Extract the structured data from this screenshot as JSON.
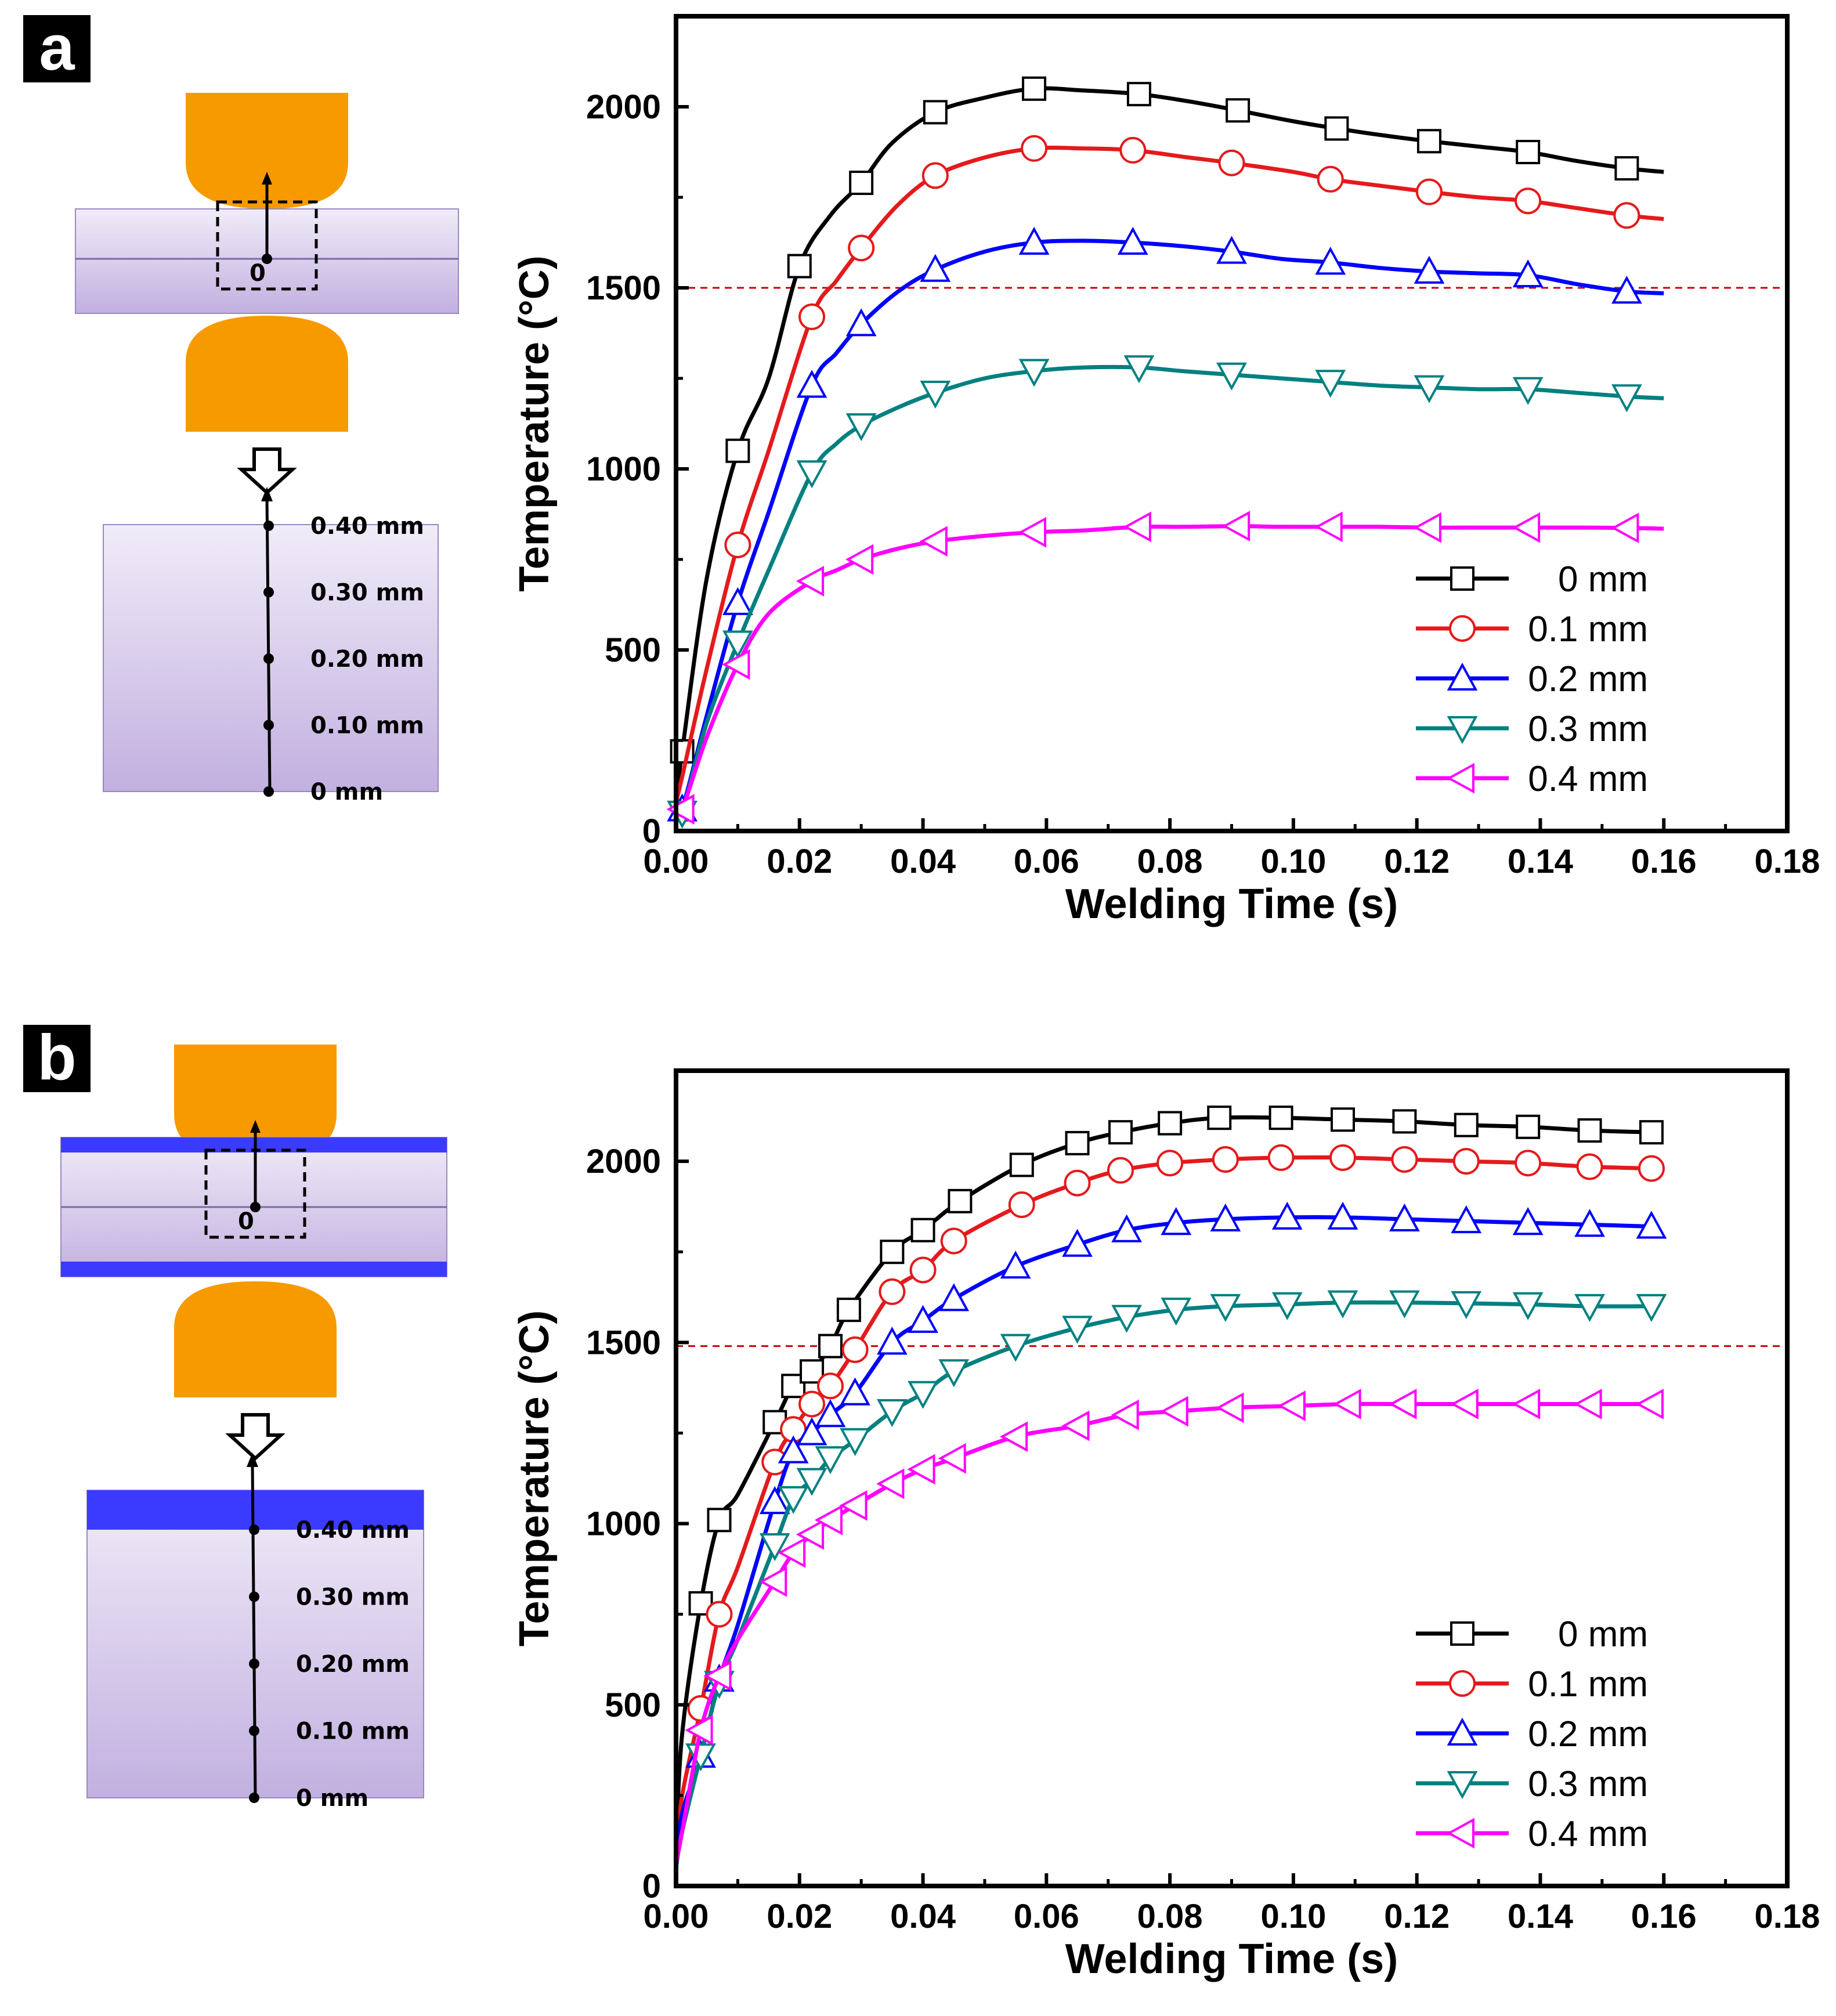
{
  "panels": [
    {
      "letter": "a",
      "coating": false,
      "diagram": {
        "origin_label": "0",
        "depth_labels": [
          "0.40 mm",
          "0.30 mm",
          "0.20 mm",
          "0.10 mm",
          "0 mm"
        ]
      },
      "chart_data": {
        "type": "line",
        "title": "",
        "xlabel": "Welding Time (s)",
        "ylabel": "Temperature (°C)",
        "xlim": [
          0,
          0.18
        ],
        "ylim": [
          0,
          2250
        ],
        "xticks": [
          "0.00",
          "0.02",
          "0.04",
          "0.06",
          "0.08",
          "0.10",
          "0.12",
          "0.14",
          "0.16",
          "0.18"
        ],
        "yticks": [
          "0",
          "500",
          "1000",
          "1500",
          "2000"
        ],
        "reference_line": 1500,
        "legend_position": "bottom-right",
        "series": [
          {
            "name": "0 mm",
            "color": "#000000",
            "marker": "square",
            "x": [
              0,
              0.001,
              0.005,
              0.01,
              0.015,
              0.02,
              0.025,
              0.03,
              0.035,
              0.042,
              0.05,
              0.058,
              0.066,
              0.075,
              0.083,
              0.091,
              0.1,
              0.107,
              0.115,
              0.122,
              0.13,
              0.138,
              0.146,
              0.154,
              0.16
            ],
            "y": [
              100,
              220,
              700,
              1050,
              1250,
              1560,
              1700,
              1790,
              1900,
              1985,
              2025,
              2050,
              2045,
              2035,
              2015,
              1990,
              1960,
              1940,
              1920,
              1905,
              1890,
              1875,
              1850,
              1830,
              1820
            ],
            "marker_idx": [
              1,
              3,
              5,
              7,
              9,
              11,
              13,
              15,
              17,
              19,
              21,
              23
            ]
          },
          {
            "name": "0.1 mm",
            "color": "#e41a1c",
            "marker": "circle",
            "x": [
              0,
              0.001,
              0.005,
              0.01,
              0.015,
              0.022,
              0.026,
              0.03,
              0.036,
              0.042,
              0.05,
              0.058,
              0.066,
              0.074,
              0.083,
              0.09,
              0.1,
              0.106,
              0.115,
              0.122,
              0.13,
              0.138,
              0.146,
              0.154,
              0.16
            ],
            "y": [
              80,
              150,
              450,
              790,
              1050,
              1420,
              1520,
              1610,
              1730,
              1810,
              1860,
              1885,
              1885,
              1880,
              1860,
              1845,
              1820,
              1800,
              1780,
              1765,
              1750,
              1740,
              1720,
              1700,
              1690
            ],
            "marker_idx": [
              3,
              5,
              7,
              9,
              11,
              13,
              15,
              17,
              19,
              21,
              23
            ]
          },
          {
            "name": "0.2 mm",
            "color": "#0000ff",
            "marker": "triangle-up",
            "x": [
              0,
              0.001,
              0.005,
              0.01,
              0.015,
              0.022,
              0.026,
              0.03,
              0.036,
              0.042,
              0.05,
              0.058,
              0.066,
              0.074,
              0.082,
              0.09,
              0.098,
              0.106,
              0.114,
              0.122,
              0.13,
              0.138,
              0.146,
              0.154,
              0.16
            ],
            "y": [
              60,
              60,
              320,
              630,
              880,
              1230,
              1320,
              1400,
              1490,
              1550,
              1600,
              1625,
              1630,
              1625,
              1615,
              1600,
              1580,
              1570,
              1555,
              1545,
              1540,
              1535,
              1510,
              1490,
              1485
            ],
            "marker_idx": [
              1,
              3,
              5,
              7,
              9,
              11,
              13,
              15,
              17,
              19,
              21,
              23
            ]
          },
          {
            "name": "0.3 mm",
            "color": "#008080",
            "marker": "triangle-down",
            "x": [
              0,
              0.001,
              0.005,
              0.01,
              0.015,
              0.022,
              0.026,
              0.03,
              0.036,
              0.042,
              0.05,
              0.058,
              0.066,
              0.075,
              0.082,
              0.09,
              0.098,
              0.106,
              0.114,
              0.122,
              0.13,
              0.138,
              0.146,
              0.154,
              0.16
            ],
            "y": [
              50,
              50,
              300,
              520,
              720,
              990,
              1070,
              1120,
              1170,
              1210,
              1250,
              1270,
              1280,
              1280,
              1270,
              1260,
              1250,
              1240,
              1230,
              1225,
              1220,
              1220,
              1210,
              1200,
              1195
            ],
            "marker_idx": [
              1,
              3,
              5,
              7,
              9,
              11,
              13,
              15,
              17,
              19,
              21,
              23
            ]
          },
          {
            "name": "0.4 mm",
            "color": "#ff00ff",
            "marker": "triangle-left",
            "x": [
              0,
              0.001,
              0.005,
              0.01,
              0.015,
              0.022,
              0.026,
              0.03,
              0.036,
              0.042,
              0.05,
              0.058,
              0.066,
              0.075,
              0.082,
              0.091,
              0.098,
              0.106,
              0.114,
              0.122,
              0.13,
              0.138,
              0.146,
              0.154,
              0.16
            ],
            "y": [
              60,
              60,
              260,
              460,
              600,
              690,
              720,
              750,
              780,
              800,
              815,
              825,
              830,
              840,
              840,
              842,
              840,
              840,
              840,
              838,
              838,
              838,
              838,
              837,
              835
            ],
            "marker_idx": [
              1,
              3,
              5,
              7,
              9,
              11,
              13,
              15,
              17,
              19,
              21,
              23
            ]
          }
        ]
      }
    },
    {
      "letter": "b",
      "coating": true,
      "diagram": {
        "origin_label": "0",
        "depth_labels": [
          "0.40 mm",
          "0.30 mm",
          "0.20 mm",
          "0.10 mm",
          "0 mm"
        ]
      },
      "chart_data": {
        "type": "line",
        "title": "",
        "xlabel": "Welding Time (s)",
        "ylabel": "Temperature (°C)",
        "xlim": [
          0,
          0.18
        ],
        "ylim": [
          0,
          2250
        ],
        "xticks": [
          "0.00",
          "0.02",
          "0.04",
          "0.06",
          "0.08",
          "0.10",
          "0.12",
          "0.14",
          "0.16",
          "0.18"
        ],
        "yticks": [
          "0",
          "500",
          "1000",
          "1500",
          "2000"
        ],
        "reference_line": 1490,
        "legend_position": "bottom-right",
        "series": [
          {
            "name": "0 mm",
            "color": "#000000",
            "marker": "square",
            "x": [
              0,
              0.001,
              0.004,
              0.007,
              0.01,
              0.016,
              0.019,
              0.022,
              0.025,
              0.028,
              0.035,
              0.04,
              0.046,
              0.056,
              0.065,
              0.072,
              0.08,
              0.088,
              0.098,
              0.108,
              0.118,
              0.128,
              0.138,
              0.148,
              0.158
            ],
            "y": [
              100,
              420,
              780,
              1010,
              1080,
              1280,
              1380,
              1420,
              1490,
              1590,
              1750,
              1810,
              1890,
              1990,
              2050,
              2080,
              2105,
              2120,
              2120,
              2115,
              2110,
              2100,
              2095,
              2085,
              2080
            ],
            "marker_idx": [
              2,
              3,
              5,
              6,
              7,
              8,
              9,
              10,
              11,
              12,
              13,
              14,
              15,
              16,
              17,
              18,
              19,
              20,
              21,
              22,
              23,
              24
            ]
          },
          {
            "name": "0.1 mm",
            "color": "#e41a1c",
            "marker": "circle",
            "x": [
              0,
              0.001,
              0.004,
              0.007,
              0.01,
              0.016,
              0.019,
              0.022,
              0.025,
              0.029,
              0.035,
              0.04,
              0.045,
              0.056,
              0.065,
              0.072,
              0.08,
              0.089,
              0.098,
              0.108,
              0.118,
              0.128,
              0.138,
              0.148,
              0.158
            ],
            "y": [
              80,
              250,
              490,
              750,
              880,
              1170,
              1260,
              1330,
              1380,
              1480,
              1640,
              1700,
              1780,
              1880,
              1940,
              1975,
              1995,
              2005,
              2010,
              2010,
              2005,
              2000,
              1995,
              1985,
              1980
            ],
            "marker_idx": [
              2,
              3,
              5,
              6,
              7,
              8,
              9,
              10,
              11,
              12,
              13,
              14,
              15,
              16,
              17,
              18,
              19,
              20,
              21,
              22,
              23,
              24
            ]
          },
          {
            "name": "0.2 mm",
            "color": "#0000ff",
            "marker": "triangle-up",
            "x": [
              0,
              0.001,
              0.004,
              0.007,
              0.01,
              0.016,
              0.019,
              0.022,
              0.025,
              0.029,
              0.035,
              0.04,
              0.045,
              0.055,
              0.065,
              0.073,
              0.081,
              0.089,
              0.099,
              0.108,
              0.118,
              0.128,
              0.138,
              0.148,
              0.158
            ],
            "y": [
              60,
              200,
              360,
              570,
              720,
              1060,
              1200,
              1250,
              1300,
              1360,
              1500,
              1560,
              1620,
              1710,
              1770,
              1810,
              1830,
              1840,
              1845,
              1845,
              1840,
              1835,
              1830,
              1825,
              1820
            ],
            "marker_idx": [
              2,
              3,
              5,
              6,
              7,
              8,
              9,
              10,
              11,
              12,
              13,
              14,
              15,
              16,
              17,
              18,
              19,
              20,
              21,
              22,
              23,
              24
            ]
          },
          {
            "name": "0.3 mm",
            "color": "#008080",
            "marker": "triangle-down",
            "x": [
              0,
              0.001,
              0.004,
              0.007,
              0.01,
              0.016,
              0.019,
              0.022,
              0.025,
              0.029,
              0.035,
              0.04,
              0.045,
              0.055,
              0.065,
              0.073,
              0.081,
              0.089,
              0.099,
              0.108,
              0.118,
              0.128,
              0.138,
              0.148,
              0.158
            ],
            "y": [
              50,
              150,
              360,
              560,
              680,
              940,
              1070,
              1120,
              1180,
              1230,
              1310,
              1360,
              1420,
              1490,
              1540,
              1570,
              1590,
              1600,
              1605,
              1610,
              1610,
              1608,
              1605,
              1600,
              1600
            ],
            "marker_idx": [
              2,
              3,
              5,
              6,
              7,
              8,
              9,
              10,
              11,
              12,
              13,
              14,
              15,
              16,
              17,
              18,
              19,
              20,
              21,
              22,
              23,
              24
            ]
          },
          {
            "name": "0.4 mm",
            "color": "#ff00ff",
            "marker": "triangle-left",
            "x": [
              0,
              0.001,
              0.004,
              0.007,
              0.01,
              0.016,
              0.019,
              0.022,
              0.025,
              0.029,
              0.035,
              0.04,
              0.045,
              0.055,
              0.065,
              0.073,
              0.081,
              0.09,
              0.1,
              0.109,
              0.118,
              0.128,
              0.138,
              0.148,
              0.158
            ],
            "y": [
              60,
              150,
              430,
              580,
              680,
              840,
              920,
              970,
              1010,
              1050,
              1110,
              1150,
              1180,
              1240,
              1270,
              1300,
              1310,
              1320,
              1325,
              1330,
              1330,
              1330,
              1330,
              1330,
              1330
            ],
            "marker_idx": [
              2,
              3,
              5,
              6,
              7,
              8,
              9,
              10,
              11,
              12,
              13,
              14,
              15,
              16,
              17,
              18,
              19,
              20,
              21,
              22,
              23,
              24
            ]
          }
        ]
      }
    }
  ]
}
